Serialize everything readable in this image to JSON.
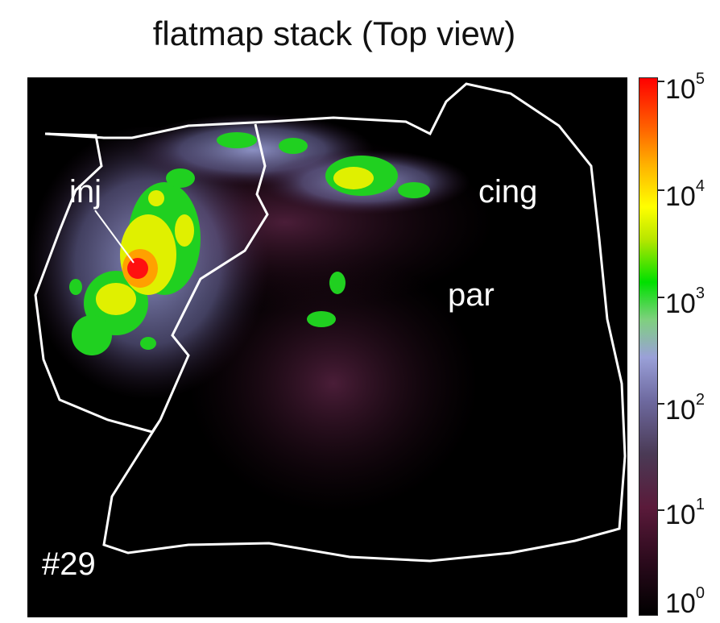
{
  "title": "flatmap stack (Top view)",
  "labels": {
    "injection": "inj",
    "cingulate": "cing",
    "parietal": "par",
    "specimen_id": "#29"
  },
  "colorbar": {
    "scale": "log",
    "ticks": [
      {
        "base": "10",
        "exp": "5"
      },
      {
        "base": "10",
        "exp": "4"
      },
      {
        "base": "10",
        "exp": "3"
      },
      {
        "base": "10",
        "exp": "2"
      },
      {
        "base": "10",
        "exp": "1"
      },
      {
        "base": "10",
        "exp": "0"
      }
    ],
    "colors": [
      "#000000",
      "#5a1a3a",
      "#6e6aa0",
      "#00e000",
      "#ffff00",
      "#ff6a00",
      "#ff0000"
    ]
  }
}
